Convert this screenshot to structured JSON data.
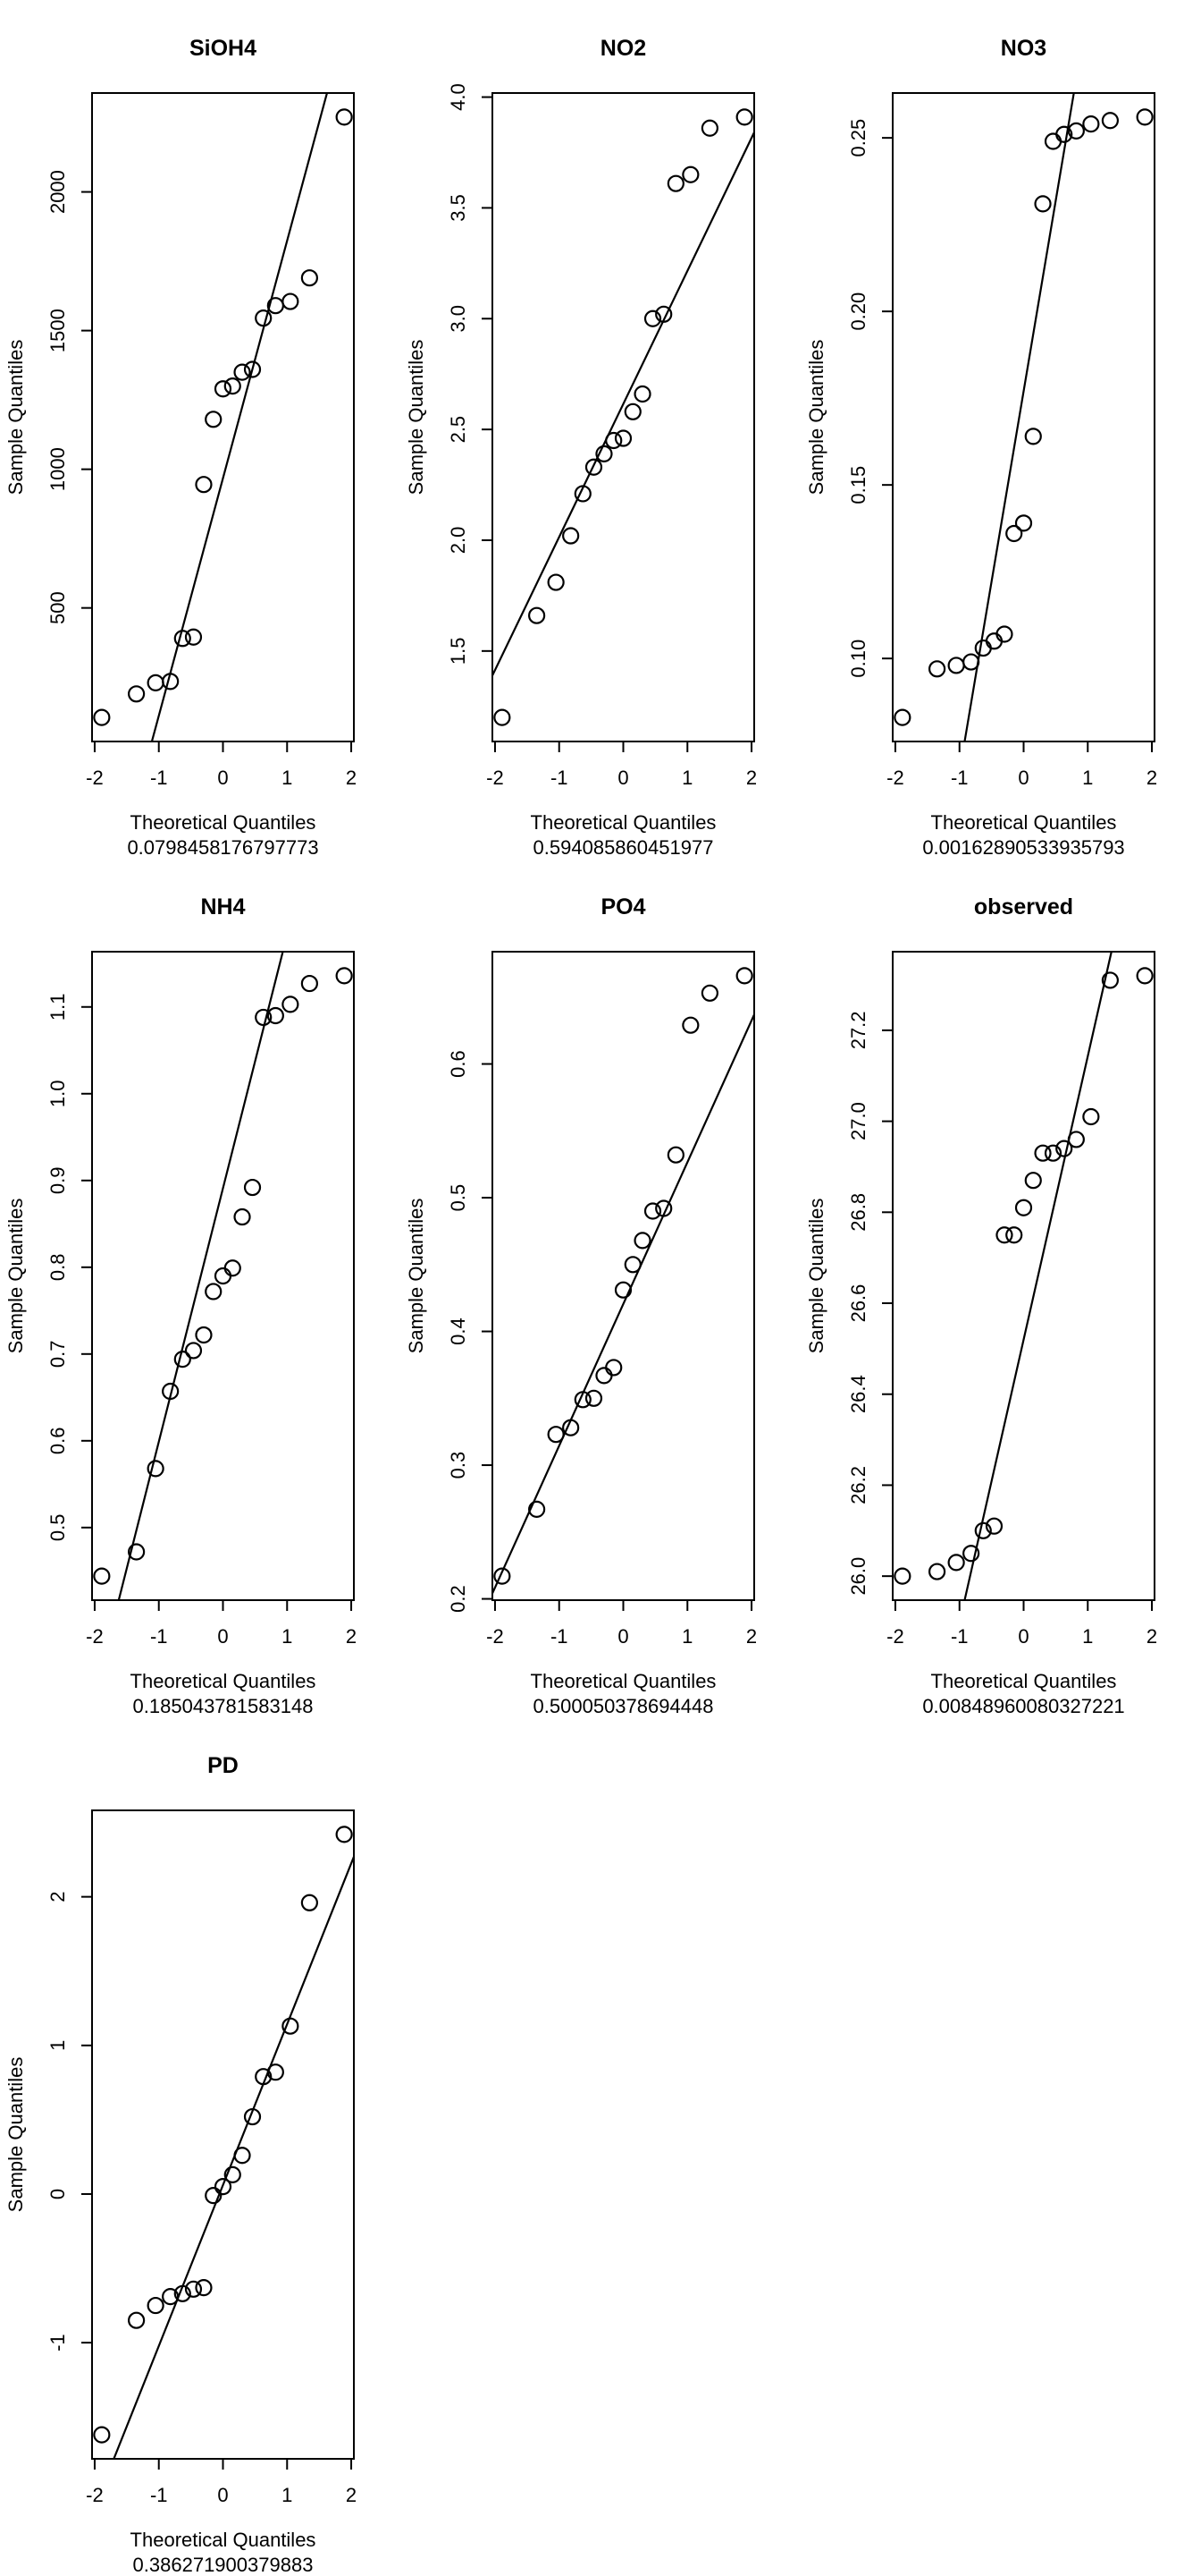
{
  "page": {
    "background": "#ffffff",
    "foreground": "#000000",
    "grid_rows": 3,
    "grid_cols": 3
  },
  "chart_data": [
    {
      "type": "scatter",
      "chart_kind": "normal-qq-plot",
      "title": "SiOH4",
      "xlabel": "Theoretical Quantiles",
      "sublabel": "0.0798458176797773",
      "ylabel": "Sample Quantiles",
      "grid": false,
      "x_ticks": [
        -2,
        -1,
        0,
        1,
        2
      ],
      "x_tick_labels": [
        "-2",
        "-1",
        "0",
        "1",
        "2"
      ],
      "y_ticks": [
        500,
        1000,
        1500,
        2000
      ],
      "y_tick_labels": [
        "500",
        "1000",
        "1500",
        "2000"
      ],
      "x": [
        -1.89,
        -1.35,
        -1.05,
        -0.82,
        -0.63,
        -0.46,
        -0.3,
        -0.15,
        0,
        0.15,
        0.3,
        0.46,
        0.63,
        0.82,
        1.05,
        1.35,
        1.89
      ],
      "values": [
        105,
        190,
        230,
        235,
        390,
        395,
        945,
        1180,
        1290,
        1300,
        1350,
        1360,
        1545,
        1590,
        1605,
        1690,
        2270
      ]
    },
    {
      "type": "scatter",
      "chart_kind": "normal-qq-plot",
      "title": "NO2",
      "xlabel": "Theoretical Quantiles",
      "sublabel": "0.594085860451977",
      "ylabel": "Sample Quantiles",
      "grid": false,
      "x_ticks": [
        -2,
        -1,
        0,
        1,
        2
      ],
      "x_tick_labels": [
        "-2",
        "-1",
        "0",
        "1",
        "2"
      ],
      "y_ticks": [
        1.5,
        2.0,
        2.5,
        3.0,
        3.5,
        4.0
      ],
      "y_tick_labels": [
        "1.5",
        "2.0",
        "2.5",
        "3.0",
        "3.5",
        "4.0"
      ],
      "x": [
        -1.89,
        -1.35,
        -1.05,
        -0.82,
        -0.63,
        -0.46,
        -0.3,
        -0.15,
        0,
        0.15,
        0.3,
        0.46,
        0.63,
        0.82,
        1.05,
        1.35,
        1.89
      ],
      "values": [
        1.2,
        1.66,
        1.81,
        2.02,
        2.21,
        2.33,
        2.39,
        2.45,
        2.46,
        2.58,
        2.66,
        3.0,
        3.02,
        3.61,
        3.65,
        3.86,
        3.91
      ]
    },
    {
      "type": "scatter",
      "chart_kind": "normal-qq-plot",
      "title": "NO3",
      "xlabel": "Theoretical Quantiles",
      "sublabel": "0.00162890533935793",
      "ylabel": "Sample Quantiles",
      "grid": false,
      "x_ticks": [
        -2,
        -1,
        0,
        1,
        2
      ],
      "x_tick_labels": [
        "-2",
        "-1",
        "0",
        "1",
        "2"
      ],
      "y_ticks": [
        0.1,
        0.15,
        0.2,
        0.25
      ],
      "y_tick_labels": [
        "0.10",
        "0.15",
        "0.20",
        "0.25"
      ],
      "x": [
        -1.89,
        -1.35,
        -1.05,
        -0.82,
        -0.63,
        -0.46,
        -0.3,
        -0.15,
        0,
        0.15,
        0.3,
        0.46,
        0.63,
        0.82,
        1.05,
        1.35,
        1.89
      ],
      "values": [
        0.083,
        0.097,
        0.098,
        0.099,
        0.103,
        0.105,
        0.107,
        0.136,
        0.139,
        0.164,
        0.231,
        0.249,
        0.251,
        0.252,
        0.254,
        0.255,
        0.256
      ]
    },
    {
      "type": "scatter",
      "chart_kind": "normal-qq-plot",
      "title": "NH4",
      "xlabel": "Theoretical Quantiles",
      "sublabel": "0.185043781583148",
      "ylabel": "Sample Quantiles",
      "grid": false,
      "x_ticks": [
        -2,
        -1,
        0,
        1,
        2
      ],
      "x_tick_labels": [
        "-2",
        "-1",
        "0",
        "1",
        "2"
      ],
      "y_ticks": [
        0.5,
        0.6,
        0.7,
        0.8,
        0.9,
        1.0,
        1.1
      ],
      "y_tick_labels": [
        "0.5",
        "0.6",
        "0.7",
        "0.8",
        "0.9",
        "1.0",
        "1.1"
      ],
      "x": [
        -1.89,
        -1.35,
        -1.05,
        -0.82,
        -0.63,
        -0.46,
        -0.3,
        -0.15,
        0,
        0.15,
        0.3,
        0.46,
        0.63,
        0.82,
        1.05,
        1.35,
        1.89
      ],
      "values": [
        0.444,
        0.472,
        0.568,
        0.657,
        0.694,
        0.704,
        0.722,
        0.772,
        0.79,
        0.799,
        0.858,
        0.892,
        1.088,
        1.09,
        1.103,
        1.127,
        1.136
      ]
    },
    {
      "type": "scatter",
      "chart_kind": "normal-qq-plot",
      "title": "PO4",
      "xlabel": "Theoretical Quantiles",
      "sublabel": "0.500050378694448",
      "ylabel": "Sample Quantiles",
      "grid": false,
      "x_ticks": [
        -2,
        -1,
        0,
        1,
        2
      ],
      "x_tick_labels": [
        "-2",
        "-1",
        "0",
        "1",
        "2"
      ],
      "y_ticks": [
        0.2,
        0.3,
        0.4,
        0.5,
        0.6
      ],
      "y_tick_labels": [
        "0.2",
        "0.3",
        "0.4",
        "0.5",
        "0.6"
      ],
      "x": [
        -1.89,
        -1.35,
        -1.05,
        -0.82,
        -0.63,
        -0.46,
        -0.3,
        -0.15,
        0,
        0.15,
        0.3,
        0.46,
        0.63,
        0.82,
        1.05,
        1.35,
        1.89
      ],
      "values": [
        0.217,
        0.267,
        0.323,
        0.328,
        0.349,
        0.35,
        0.367,
        0.373,
        0.431,
        0.45,
        0.468,
        0.49,
        0.492,
        0.532,
        0.629,
        0.653,
        0.666
      ]
    },
    {
      "type": "scatter",
      "chart_kind": "normal-qq-plot",
      "title": "observed",
      "xlabel": "Theoretical Quantiles",
      "sublabel": "0.00848960080327221",
      "ylabel": "Sample Quantiles",
      "grid": false,
      "x_ticks": [
        -2,
        -1,
        0,
        1,
        2
      ],
      "x_tick_labels": [
        "-2",
        "-1",
        "0",
        "1",
        "2"
      ],
      "y_ticks": [
        26.0,
        26.2,
        26.4,
        26.6,
        26.8,
        27.0,
        27.2
      ],
      "y_tick_labels": [
        "26.0",
        "26.2",
        "26.4",
        "26.6",
        "26.8",
        "27.0",
        "27.2"
      ],
      "x": [
        -1.89,
        -1.35,
        -1.05,
        -0.82,
        -0.63,
        -0.46,
        -0.3,
        -0.15,
        0,
        0.15,
        0.3,
        0.46,
        0.63,
        0.82,
        1.05,
        1.35,
        1.89
      ],
      "values": [
        26.0,
        26.01,
        26.03,
        26.05,
        26.1,
        26.11,
        26.75,
        26.75,
        26.81,
        26.87,
        26.93,
        26.93,
        26.94,
        26.96,
        27.01,
        27.31,
        27.32
      ]
    },
    {
      "type": "scatter",
      "chart_kind": "normal-qq-plot",
      "title": "PD",
      "xlabel": "Theoretical Quantiles",
      "sublabel": "0.386271900379883",
      "ylabel": "Sample Quantiles",
      "grid": false,
      "x_ticks": [
        -2,
        -1,
        0,
        1,
        2
      ],
      "x_tick_labels": [
        "-2",
        "-1",
        "0",
        "1",
        "2"
      ],
      "y_ticks": [
        -1,
        0,
        1,
        2
      ],
      "y_tick_labels": [
        "-1",
        "0",
        "1",
        "2"
      ],
      "x": [
        -1.89,
        -1.35,
        -1.05,
        -0.82,
        -0.63,
        -0.46,
        -0.3,
        -0.15,
        0,
        0.15,
        0.3,
        0.46,
        0.63,
        0.82,
        1.05,
        1.35,
        1.89
      ],
      "values": [
        -1.62,
        -0.85,
        -0.75,
        -0.69,
        -0.67,
        -0.64,
        -0.63,
        -0.01,
        0.05,
        0.13,
        0.26,
        0.52,
        0.79,
        0.82,
        1.13,
        1.96,
        2.42
      ]
    }
  ]
}
